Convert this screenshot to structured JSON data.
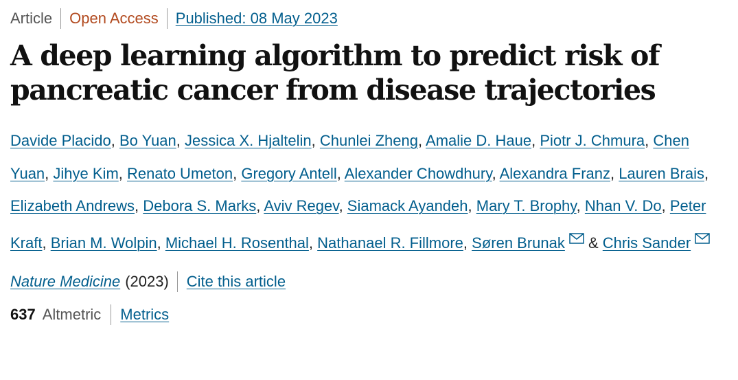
{
  "header": {
    "article_type": "Article",
    "access": "Open Access",
    "published": "Published: 08 May 2023"
  },
  "title": "A deep learning algorithm to predict risk of pancreatic cancer from disease trajectories",
  "authors": [
    {
      "name": "Davide Placido",
      "sep": ", "
    },
    {
      "name": "Bo Yuan",
      "sep": ", "
    },
    {
      "name": "Jessica X. Hjaltelin",
      "sep": ", "
    },
    {
      "name": "Chunlei Zheng",
      "sep": ", "
    },
    {
      "name": "Amalie D. Haue",
      "sep": ", "
    },
    {
      "name": "Piotr J. Chmura",
      "sep": ", "
    },
    {
      "name": "Chen Yuan",
      "sep": ", "
    },
    {
      "name": "Jihye Kim",
      "sep": ", "
    },
    {
      "name": "Renato Umeton",
      "sep": ", "
    },
    {
      "name": "Gregory Antell",
      "sep": ", "
    },
    {
      "name": "Alexander Chowdhury",
      "sep": ", "
    },
    {
      "name": "Alexandra Franz",
      "sep": ", "
    },
    {
      "name": "Lauren Brais",
      "sep": ", "
    },
    {
      "name": "Elizabeth Andrews",
      "sep": ", "
    },
    {
      "name": "Debora S. Marks",
      "sep": ", "
    },
    {
      "name": "Aviv Regev",
      "sep": ", "
    },
    {
      "name": "Siamack Ayandeh",
      "sep": ", "
    },
    {
      "name": "Mary T. Brophy",
      "sep": ", "
    },
    {
      "name": "Nhan V. Do",
      "sep": ", "
    },
    {
      "name": "Peter Kraft",
      "sep": ", "
    },
    {
      "name": "Brian M. Wolpin",
      "sep": ", "
    },
    {
      "name": "Michael H. Rosenthal",
      "sep": ", "
    },
    {
      "name": "Nathanael R. Fillmore",
      "sep": ", "
    },
    {
      "name": "Søren Brunak",
      "sep": " & ",
      "email": true
    },
    {
      "name": "Chris Sander",
      "sep": "",
      "email": true
    }
  ],
  "icons": {
    "email": "envelope-icon"
  },
  "journal": {
    "name": "Nature Medicine",
    "year": "(2023)",
    "cite": "Cite this article"
  },
  "metrics": {
    "altmetric_count": "637",
    "altmetric_label": "Altmetric",
    "metrics_link": "Metrics"
  },
  "colors": {
    "link": "#025e8d",
    "open_access": "#b24a1f",
    "text": "#222222"
  }
}
